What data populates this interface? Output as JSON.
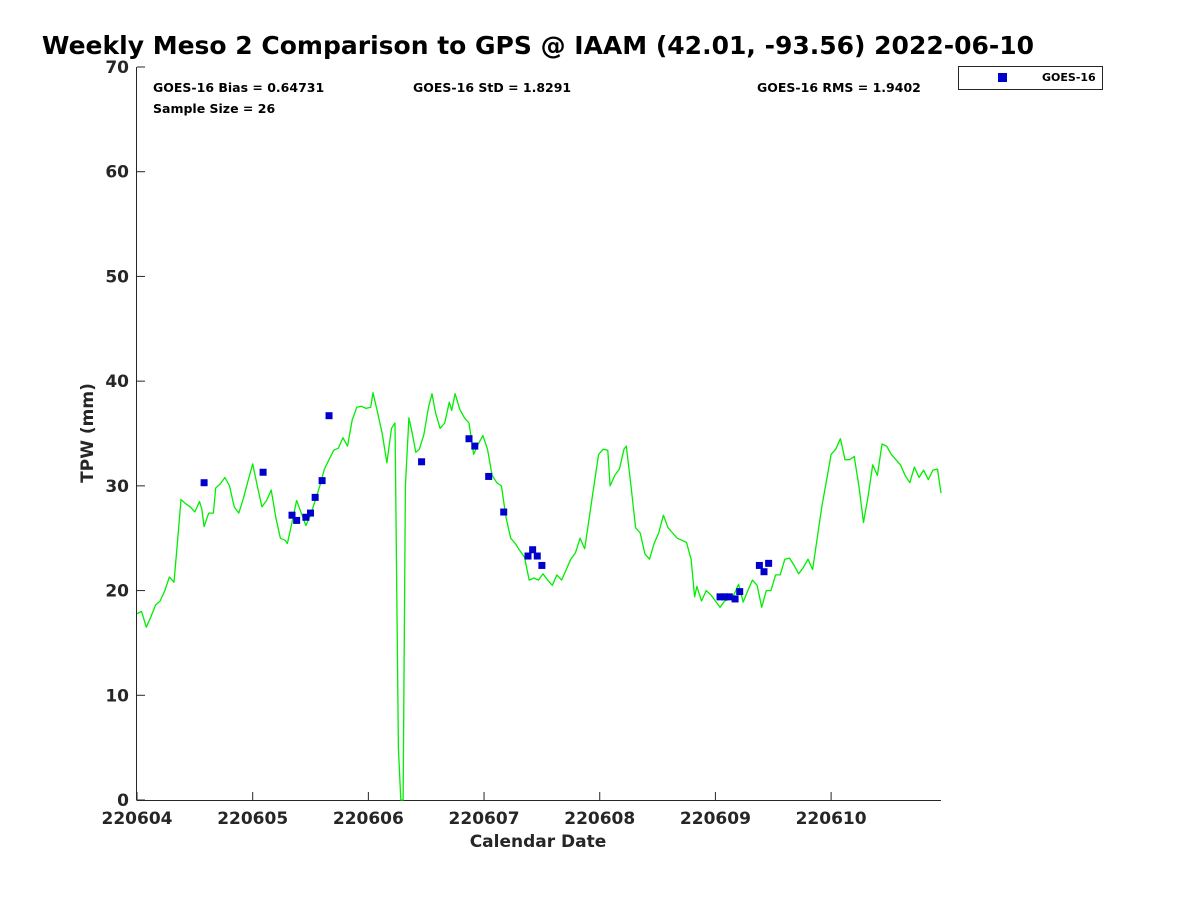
{
  "chart_data": {
    "type": "scatter",
    "title": "Weekly Meso 2 Comparison to GPS @ IAAM (42.01, -93.56) 2022-06-10",
    "xlabel": "Calendar Date",
    "ylabel": "TPW (mm)",
    "xlim": [
      0,
      6.95
    ],
    "ylim": [
      0,
      70
    ],
    "grid": false,
    "legend_position": "top-right outside",
    "x_ticks": [
      {
        "value": 0,
        "label": "220604"
      },
      {
        "value": 1,
        "label": "220605"
      },
      {
        "value": 2,
        "label": "220606"
      },
      {
        "value": 3,
        "label": "220607"
      },
      {
        "value": 4,
        "label": "220608"
      },
      {
        "value": 5,
        "label": "220609"
      },
      {
        "value": 6,
        "label": "220610"
      }
    ],
    "y_ticks": [
      0,
      10,
      20,
      30,
      40,
      50,
      60,
      70
    ],
    "stats": {
      "bias": "GOES-16 Bias = 0.64731",
      "std": "GOES-16 StD = 1.8291",
      "rms": "GOES-16 RMS = 1.9402",
      "sample": "Sample Size = 26"
    },
    "series": [
      {
        "name": "GOES-16",
        "kind": "scatter",
        "color": "#0000cc",
        "points": [
          [
            0.58,
            30.3
          ],
          [
            1.09,
            31.3
          ],
          [
            1.34,
            27.2
          ],
          [
            1.38,
            26.7
          ],
          [
            1.46,
            27.0
          ],
          [
            1.5,
            27.4
          ],
          [
            1.54,
            28.9
          ],
          [
            1.6,
            30.5
          ],
          [
            1.66,
            36.7
          ],
          [
            2.46,
            32.3
          ],
          [
            2.87,
            34.5
          ],
          [
            2.92,
            33.8
          ],
          [
            3.04,
            30.9
          ],
          [
            3.17,
            27.5
          ],
          [
            3.38,
            23.3
          ],
          [
            3.42,
            23.9
          ],
          [
            3.46,
            23.3
          ],
          [
            3.5,
            22.4
          ],
          [
            5.04,
            19.4
          ],
          [
            5.08,
            19.4
          ],
          [
            5.12,
            19.4
          ],
          [
            5.17,
            19.2
          ],
          [
            5.21,
            19.9
          ],
          [
            5.38,
            22.4
          ],
          [
            5.42,
            21.8
          ],
          [
            5.46,
            22.6
          ]
        ]
      },
      {
        "kind": "line",
        "color": "#00ee00",
        "points": [
          [
            0.0,
            17.8
          ],
          [
            0.04,
            18.0
          ],
          [
            0.08,
            16.5
          ],
          [
            0.12,
            17.5
          ],
          [
            0.16,
            18.6
          ],
          [
            0.2,
            19.0
          ],
          [
            0.24,
            20.0
          ],
          [
            0.28,
            21.3
          ],
          [
            0.32,
            20.8
          ],
          [
            0.36,
            25.9
          ],
          [
            0.38,
            28.7
          ],
          [
            0.42,
            28.3
          ],
          [
            0.46,
            28.0
          ],
          [
            0.5,
            27.5
          ],
          [
            0.54,
            28.5
          ],
          [
            0.56,
            27.8
          ],
          [
            0.58,
            26.1
          ],
          [
            0.62,
            27.4
          ],
          [
            0.66,
            27.4
          ],
          [
            0.68,
            29.8
          ],
          [
            0.72,
            30.2
          ],
          [
            0.76,
            30.8
          ],
          [
            0.8,
            30.0
          ],
          [
            0.84,
            28.0
          ],
          [
            0.88,
            27.4
          ],
          [
            0.92,
            28.8
          ],
          [
            0.96,
            30.5
          ],
          [
            1.0,
            32.1
          ],
          [
            1.04,
            30.0
          ],
          [
            1.08,
            28.0
          ],
          [
            1.12,
            28.6
          ],
          [
            1.16,
            29.6
          ],
          [
            1.2,
            27.0
          ],
          [
            1.24,
            25.0
          ],
          [
            1.28,
            24.8
          ],
          [
            1.3,
            24.5
          ],
          [
            1.34,
            26.5
          ],
          [
            1.38,
            28.6
          ],
          [
            1.42,
            27.4
          ],
          [
            1.46,
            26.2
          ],
          [
            1.5,
            27.2
          ],
          [
            1.54,
            28.6
          ],
          [
            1.58,
            30.0
          ],
          [
            1.62,
            31.6
          ],
          [
            1.66,
            32.5
          ],
          [
            1.7,
            33.4
          ],
          [
            1.74,
            33.6
          ],
          [
            1.78,
            34.6
          ],
          [
            1.82,
            33.8
          ],
          [
            1.86,
            36.3
          ],
          [
            1.9,
            37.5
          ],
          [
            1.94,
            37.6
          ],
          [
            1.98,
            37.4
          ],
          [
            2.02,
            37.5
          ],
          [
            2.04,
            38.9
          ],
          [
            2.08,
            37.0
          ],
          [
            2.12,
            35.0
          ],
          [
            2.16,
            32.2
          ],
          [
            2.2,
            35.5
          ],
          [
            2.23,
            36.0
          ],
          [
            2.26,
            5.0
          ],
          [
            2.28,
            0.0
          ],
          [
            2.3,
            0.0
          ],
          [
            2.32,
            30.0
          ],
          [
            2.35,
            36.5
          ],
          [
            2.38,
            35.0
          ],
          [
            2.41,
            33.2
          ],
          [
            2.44,
            33.5
          ],
          [
            2.48,
            34.9
          ],
          [
            2.52,
            37.5
          ],
          [
            2.55,
            38.8
          ],
          [
            2.58,
            37.0
          ],
          [
            2.62,
            35.5
          ],
          [
            2.66,
            36.0
          ],
          [
            2.7,
            38.0
          ],
          [
            2.72,
            37.2
          ],
          [
            2.75,
            38.8
          ],
          [
            2.79,
            37.3
          ],
          [
            2.83,
            36.5
          ],
          [
            2.87,
            36.0
          ],
          [
            2.91,
            33.0
          ],
          [
            2.95,
            34.0
          ],
          [
            2.99,
            34.8
          ],
          [
            3.03,
            33.5
          ],
          [
            3.07,
            31.0
          ],
          [
            3.11,
            30.3
          ],
          [
            3.15,
            30.0
          ],
          [
            3.19,
            27.0
          ],
          [
            3.23,
            25.0
          ],
          [
            3.27,
            24.5
          ],
          [
            3.31,
            23.8
          ],
          [
            3.35,
            23.2
          ],
          [
            3.39,
            21.0
          ],
          [
            3.43,
            21.2
          ],
          [
            3.47,
            21.0
          ],
          [
            3.51,
            21.6
          ],
          [
            3.55,
            21.0
          ],
          [
            3.59,
            20.5
          ],
          [
            3.63,
            21.5
          ],
          [
            3.67,
            21.0
          ],
          [
            3.71,
            22.0
          ],
          [
            3.75,
            23.0
          ],
          [
            3.79,
            23.6
          ],
          [
            3.83,
            25.0
          ],
          [
            3.87,
            24.0
          ],
          [
            3.91,
            27.0
          ],
          [
            3.95,
            30.0
          ],
          [
            3.99,
            33.0
          ],
          [
            4.03,
            33.5
          ],
          [
            4.07,
            33.4
          ],
          [
            4.09,
            30.0
          ],
          [
            4.13,
            31.0
          ],
          [
            4.17,
            31.6
          ],
          [
            4.21,
            33.5
          ],
          [
            4.23,
            33.8
          ],
          [
            4.27,
            30.0
          ],
          [
            4.31,
            26.0
          ],
          [
            4.35,
            25.5
          ],
          [
            4.39,
            23.5
          ],
          [
            4.43,
            23.0
          ],
          [
            4.47,
            24.5
          ],
          [
            4.51,
            25.5
          ],
          [
            4.55,
            27.2
          ],
          [
            4.59,
            26.0
          ],
          [
            4.63,
            25.5
          ],
          [
            4.67,
            25.0
          ],
          [
            4.71,
            24.8
          ],
          [
            4.75,
            24.6
          ],
          [
            4.79,
            23.0
          ],
          [
            4.82,
            19.4
          ],
          [
            4.84,
            20.4
          ],
          [
            4.88,
            19.0
          ],
          [
            4.92,
            20.0
          ],
          [
            4.96,
            19.6
          ],
          [
            5.0,
            19.0
          ],
          [
            5.04,
            18.4
          ],
          [
            5.08,
            19.0
          ],
          [
            5.12,
            19.2
          ],
          [
            5.16,
            19.6
          ],
          [
            5.2,
            20.6
          ],
          [
            5.24,
            18.9
          ],
          [
            5.28,
            20.0
          ],
          [
            5.32,
            21.0
          ],
          [
            5.36,
            20.5
          ],
          [
            5.4,
            18.4
          ],
          [
            5.44,
            20.0
          ],
          [
            5.48,
            20.0
          ],
          [
            5.52,
            21.5
          ],
          [
            5.56,
            21.5
          ],
          [
            5.6,
            23.0
          ],
          [
            5.64,
            23.1
          ],
          [
            5.68,
            22.4
          ],
          [
            5.72,
            21.6
          ],
          [
            5.76,
            22.2
          ],
          [
            5.8,
            23.0
          ],
          [
            5.84,
            22.0
          ],
          [
            5.88,
            25.0
          ],
          [
            5.92,
            28.0
          ],
          [
            5.96,
            30.5
          ],
          [
            6.0,
            33.0
          ],
          [
            6.04,
            33.5
          ],
          [
            6.08,
            34.5
          ],
          [
            6.12,
            32.5
          ],
          [
            6.16,
            32.5
          ],
          [
            6.2,
            32.8
          ],
          [
            6.24,
            30.0
          ],
          [
            6.28,
            26.5
          ],
          [
            6.32,
            29.0
          ],
          [
            6.36,
            32.0
          ],
          [
            6.4,
            31.0
          ],
          [
            6.44,
            34.0
          ],
          [
            6.48,
            33.8
          ],
          [
            6.52,
            33.0
          ],
          [
            6.56,
            32.5
          ],
          [
            6.6,
            32.0
          ],
          [
            6.64,
            31.0
          ],
          [
            6.68,
            30.3
          ],
          [
            6.72,
            31.8
          ],
          [
            6.76,
            30.8
          ],
          [
            6.8,
            31.5
          ],
          [
            6.84,
            30.6
          ],
          [
            6.88,
            31.5
          ],
          [
            6.92,
            31.6
          ],
          [
            6.95,
            29.3
          ]
        ]
      }
    ]
  }
}
